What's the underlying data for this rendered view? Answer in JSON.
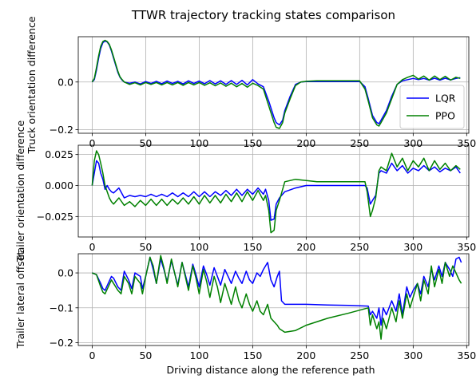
{
  "figure": {
    "title": "TTWR trajectory tracking states comparison",
    "xlabel": "Driving distance along the reference path"
  },
  "colors": {
    "LQR": "#0000ff",
    "PPO": "#008000",
    "grid": "#b0b0b0"
  },
  "chart_data": [
    {
      "type": "line",
      "ylabel": "Truck orientation difference",
      "xlim": [
        -13,
        352
      ],
      "ylim": [
        -0.215,
        0.19
      ],
      "xticks": [
        0,
        50,
        100,
        150,
        200,
        250,
        300,
        350
      ],
      "yticks": [
        -0.2,
        0.0
      ],
      "ytick_labels": [
        "−0.2",
        "0.0"
      ],
      "grid": true,
      "legend": "lower-right",
      "series": [
        {
          "name": "LQR",
          "x": [
            0,
            2,
            4,
            6,
            8,
            10,
            12,
            14,
            16,
            18,
            20,
            22,
            24,
            26,
            28,
            30,
            35,
            40,
            45,
            50,
            55,
            60,
            65,
            70,
            75,
            80,
            85,
            90,
            95,
            100,
            105,
            110,
            115,
            120,
            125,
            130,
            135,
            140,
            145,
            150,
            155,
            160,
            165,
            170,
            172,
            175,
            178,
            180,
            185,
            190,
            195,
            200,
            210,
            220,
            230,
            240,
            250,
            255,
            258,
            262,
            266,
            268,
            270,
            275,
            280,
            285,
            290,
            295,
            300,
            305,
            310,
            315,
            320,
            325,
            330,
            335,
            340,
            344
          ],
          "y": [
            0,
            0.01,
            0.05,
            0.1,
            0.14,
            0.165,
            0.172,
            0.168,
            0.155,
            0.13,
            0.1,
            0.07,
            0.04,
            0.02,
            0.008,
            0,
            -0.005,
            0,
            -0.008,
            0.002,
            -0.006,
            0.003,
            -0.007,
            0.004,
            -0.006,
            0.003,
            -0.008,
            0.005,
            -0.006,
            0.004,
            -0.007,
            0.006,
            -0.008,
            0.005,
            -0.01,
            0.006,
            -0.01,
            0.007,
            -0.012,
            0.01,
            -0.008,
            -0.02,
            -0.08,
            -0.15,
            -0.17,
            -0.18,
            -0.16,
            -0.12,
            -0.06,
            -0.01,
            0,
            0.002,
            0.002,
            0.002,
            0.002,
            0.002,
            0.002,
            -0.02,
            -0.07,
            -0.14,
            -0.17,
            -0.175,
            -0.16,
            -0.12,
            -0.06,
            -0.01,
            0.005,
            0.01,
            0.015,
            0.01,
            0.015,
            0.008,
            0.016,
            0.008,
            0.016,
            0.009,
            0.015,
            0.018
          ]
        },
        {
          "name": "PPO",
          "x": [
            0,
            2,
            4,
            6,
            8,
            10,
            12,
            14,
            16,
            18,
            20,
            22,
            24,
            26,
            28,
            30,
            35,
            40,
            45,
            50,
            55,
            60,
            65,
            70,
            75,
            80,
            85,
            90,
            95,
            100,
            105,
            110,
            115,
            120,
            125,
            130,
            135,
            140,
            145,
            150,
            155,
            160,
            165,
            170,
            172,
            175,
            178,
            180,
            185,
            190,
            195,
            200,
            210,
            220,
            230,
            240,
            250,
            255,
            258,
            262,
            266,
            268,
            270,
            275,
            280,
            285,
            290,
            295,
            300,
            305,
            310,
            315,
            320,
            325,
            330,
            335,
            340,
            344
          ],
          "y": [
            0,
            0.015,
            0.06,
            0.11,
            0.15,
            0.17,
            0.175,
            0.17,
            0.158,
            0.135,
            0.105,
            0.075,
            0.045,
            0.022,
            0.01,
            0,
            -0.01,
            -0.003,
            -0.012,
            -0.002,
            -0.01,
            -0.002,
            -0.012,
            -0.002,
            -0.012,
            -0.002,
            -0.014,
            -0.002,
            -0.012,
            -0.002,
            -0.014,
            -0.003,
            -0.016,
            -0.004,
            -0.018,
            -0.005,
            -0.02,
            -0.006,
            -0.022,
            -0.005,
            -0.015,
            -0.03,
            -0.1,
            -0.17,
            -0.19,
            -0.195,
            -0.17,
            -0.13,
            -0.07,
            -0.015,
            0,
            0.003,
            0.005,
            0.005,
            0.005,
            0.005,
            0.005,
            -0.03,
            -0.08,
            -0.15,
            -0.18,
            -0.185,
            -0.17,
            -0.13,
            -0.07,
            -0.01,
            0.01,
            0.02,
            0.028,
            0.012,
            0.025,
            0.008,
            0.025,
            0.01,
            0.024,
            0.008,
            0.02,
            0.015
          ]
        }
      ]
    },
    {
      "type": "line",
      "ylabel": "Trailer orientation difference",
      "xlim": [
        -13,
        352
      ],
      "ylim": [
        -0.0415,
        0.0325
      ],
      "xticks": [
        0,
        50,
        100,
        150,
        200,
        250,
        300,
        350
      ],
      "yticks": [
        -0.025,
        0.0,
        0.025
      ],
      "ytick_labels": [
        "−0.025",
        "0.000",
        "0.025"
      ],
      "grid": true,
      "series": [
        {
          "name": "LQR",
          "x": [
            0,
            2,
            4,
            6,
            8,
            10,
            12,
            14,
            16,
            18,
            20,
            25,
            30,
            35,
            40,
            45,
            50,
            55,
            60,
            65,
            70,
            75,
            80,
            85,
            90,
            95,
            100,
            105,
            110,
            115,
            120,
            125,
            130,
            135,
            140,
            145,
            150,
            155,
            160,
            162,
            165,
            167,
            170,
            172,
            175,
            180,
            190,
            200,
            210,
            220,
            230,
            240,
            250,
            255,
            257,
            260,
            262,
            265,
            268,
            270,
            275,
            280,
            285,
            290,
            295,
            300,
            305,
            310,
            315,
            320,
            325,
            330,
            335,
            340,
            344
          ],
          "y": [
            0,
            0.01,
            0.02,
            0.018,
            0.01,
            0.005,
            -0.003,
            0,
            -0.003,
            -0.005,
            -0.006,
            -0.002,
            -0.01,
            -0.008,
            -0.009,
            -0.008,
            -0.009,
            -0.007,
            -0.009,
            -0.007,
            -0.009,
            -0.006,
            -0.009,
            -0.006,
            -0.009,
            -0.005,
            -0.009,
            -0.005,
            -0.009,
            -0.005,
            -0.008,
            -0.004,
            -0.008,
            -0.003,
            -0.008,
            -0.003,
            -0.007,
            -0.002,
            -0.007,
            -0.003,
            -0.012,
            -0.028,
            -0.027,
            -0.015,
            -0.01,
            -0.005,
            -0.002,
            0,
            0,
            0,
            0,
            0,
            0,
            0,
            -0.002,
            -0.015,
            -0.012,
            -0.008,
            0.01,
            0.012,
            0.01,
            0.018,
            0.012,
            0.016,
            0.01,
            0.014,
            0.012,
            0.016,
            0.012,
            0.015,
            0.011,
            0.014,
            0.012,
            0.015,
            0.01
          ]
        },
        {
          "name": "PPO",
          "x": [
            0,
            2,
            4,
            6,
            8,
            10,
            12,
            14,
            16,
            18,
            20,
            25,
            30,
            35,
            40,
            45,
            50,
            55,
            60,
            65,
            70,
            75,
            80,
            85,
            90,
            95,
            100,
            105,
            110,
            115,
            120,
            125,
            130,
            135,
            140,
            145,
            150,
            155,
            160,
            162,
            165,
            167,
            170,
            172,
            175,
            180,
            190,
            200,
            210,
            220,
            230,
            240,
            250,
            255,
            257,
            260,
            262,
            265,
            268,
            270,
            275,
            280,
            285,
            290,
            295,
            300,
            305,
            310,
            315,
            320,
            325,
            330,
            335,
            340,
            344
          ],
          "y": [
            0,
            0.02,
            0.028,
            0.025,
            0.018,
            0.01,
            0,
            -0.005,
            -0.01,
            -0.013,
            -0.015,
            -0.01,
            -0.016,
            -0.013,
            -0.017,
            -0.012,
            -0.016,
            -0.011,
            -0.016,
            -0.011,
            -0.016,
            -0.011,
            -0.015,
            -0.01,
            -0.015,
            -0.009,
            -0.015,
            -0.008,
            -0.014,
            -0.008,
            -0.014,
            -0.007,
            -0.013,
            -0.006,
            -0.013,
            -0.005,
            -0.012,
            -0.004,
            -0.012,
            -0.008,
            -0.02,
            -0.038,
            -0.036,
            -0.02,
            -0.012,
            0.003,
            0.005,
            0.004,
            0.003,
            0.003,
            0.003,
            0.003,
            0.003,
            0.003,
            -0.005,
            -0.025,
            -0.02,
            -0.01,
            0.012,
            0.015,
            0.012,
            0.026,
            0.015,
            0.022,
            0.012,
            0.02,
            0.015,
            0.022,
            0.012,
            0.02,
            0.013,
            0.018,
            0.012,
            0.016,
            0.013
          ]
        }
      ]
    },
    {
      "type": "line",
      "ylabel": "Trailer lateral offset",
      "xlim": [
        -13,
        352
      ],
      "ylim": [
        -0.208,
        0.055
      ],
      "xticks": [
        0,
        50,
        100,
        150,
        200,
        250,
        300,
        350
      ],
      "xtick_labels": [
        "0",
        "50",
        "100",
        "150",
        "200",
        "250",
        "300",
        "350"
      ],
      "yticks": [
        -0.2,
        -0.1,
        0.0
      ],
      "ytick_labels": [
        "−0.2",
        "−0.1",
        "0.0"
      ],
      "grid": true,
      "series": [
        {
          "name": "LQR",
          "x": [
            0,
            4,
            8,
            10,
            12,
            18,
            20,
            24,
            27,
            30,
            34,
            37,
            40,
            45,
            47,
            50,
            54,
            57,
            60,
            64,
            67,
            70,
            74,
            77,
            80,
            84,
            87,
            90,
            94,
            97,
            100,
            104,
            107,
            110,
            114,
            117,
            120,
            124,
            127,
            130,
            134,
            137,
            140,
            144,
            147,
            150,
            154,
            157,
            160,
            164,
            167,
            170,
            173,
            175,
            177,
            180,
            200,
            220,
            240,
            258,
            260,
            262,
            266,
            268,
            270,
            272,
            275,
            280,
            284,
            287,
            290,
            294,
            297,
            300,
            304,
            307,
            310,
            314,
            317,
            320,
            324,
            327,
            330,
            334,
            337,
            340,
            343,
            345
          ],
          "y": [
            0,
            -0.005,
            -0.03,
            -0.045,
            -0.05,
            -0.01,
            -0.015,
            -0.04,
            -0.05,
            0.005,
            -0.02,
            -0.045,
            0,
            -0.01,
            -0.045,
            -0.01,
            0.045,
            0.01,
            -0.03,
            0.04,
            0.01,
            -0.025,
            0.035,
            0,
            -0.035,
            0.03,
            -0.005,
            -0.04,
            0.025,
            -0.005,
            -0.04,
            0.02,
            -0.005,
            -0.035,
            0.015,
            -0.01,
            -0.035,
            0.01,
            -0.01,
            -0.03,
            0.005,
            -0.015,
            -0.03,
            0.005,
            -0.02,
            -0.03,
            0,
            -0.01,
            0.01,
            0.03,
            -0.02,
            -0.04,
            -0.01,
            0.005,
            -0.08,
            -0.09,
            -0.09,
            -0.092,
            -0.093,
            -0.095,
            -0.12,
            -0.11,
            -0.13,
            -0.1,
            -0.15,
            -0.1,
            -0.12,
            -0.08,
            -0.11,
            -0.06,
            -0.12,
            -0.04,
            -0.07,
            -0.05,
            -0.03,
            -0.06,
            -0.01,
            -0.04,
            0.01,
            -0.02,
            0.02,
            -0.01,
            0.03,
            0.01,
            -0.01,
            0.04,
            0.045,
            0.03
          ]
        },
        {
          "name": "PPO",
          "x": [
            0,
            4,
            8,
            10,
            12,
            18,
            20,
            24,
            27,
            30,
            34,
            37,
            40,
            45,
            47,
            50,
            54,
            57,
            60,
            64,
            67,
            70,
            74,
            77,
            80,
            84,
            87,
            90,
            94,
            97,
            100,
            104,
            107,
            110,
            114,
            117,
            120,
            124,
            127,
            130,
            134,
            137,
            140,
            144,
            147,
            150,
            154,
            157,
            160,
            164,
            167,
            170,
            173,
            175,
            180,
            190,
            200,
            220,
            240,
            258,
            260,
            262,
            266,
            268,
            270,
            272,
            275,
            280,
            284,
            287,
            290,
            294,
            297,
            300,
            304,
            307,
            310,
            314,
            317,
            320,
            324,
            327,
            330,
            334,
            337,
            340,
            343,
            345
          ],
          "y": [
            0,
            -0.005,
            -0.04,
            -0.055,
            -0.06,
            -0.02,
            -0.03,
            -0.05,
            -0.06,
            -0.01,
            -0.03,
            -0.06,
            -0.01,
            -0.03,
            -0.06,
            -0.01,
            0.045,
            0.02,
            -0.03,
            0.05,
            0.015,
            -0.03,
            0.04,
            0,
            -0.04,
            0.03,
            -0.01,
            -0.05,
            0.02,
            -0.015,
            -0.06,
            0.01,
            -0.025,
            -0.07,
            -0.01,
            -0.04,
            -0.085,
            -0.03,
            -0.06,
            -0.09,
            -0.04,
            -0.08,
            -0.1,
            -0.06,
            -0.09,
            -0.11,
            -0.08,
            -0.11,
            -0.12,
            -0.09,
            -0.13,
            -0.14,
            -0.15,
            -0.16,
            -0.17,
            -0.165,
            -0.15,
            -0.13,
            -0.115,
            -0.1,
            -0.15,
            -0.12,
            -0.16,
            -0.14,
            -0.19,
            -0.13,
            -0.16,
            -0.1,
            -0.14,
            -0.08,
            -0.13,
            -0.06,
            -0.1,
            -0.07,
            -0.03,
            -0.08,
            -0.02,
            -0.06,
            0.02,
            -0.04,
            0.01,
            -0.03,
            0.03,
            -0.01,
            0.02,
            0,
            -0.02,
            -0.03
          ]
        }
      ]
    }
  ]
}
